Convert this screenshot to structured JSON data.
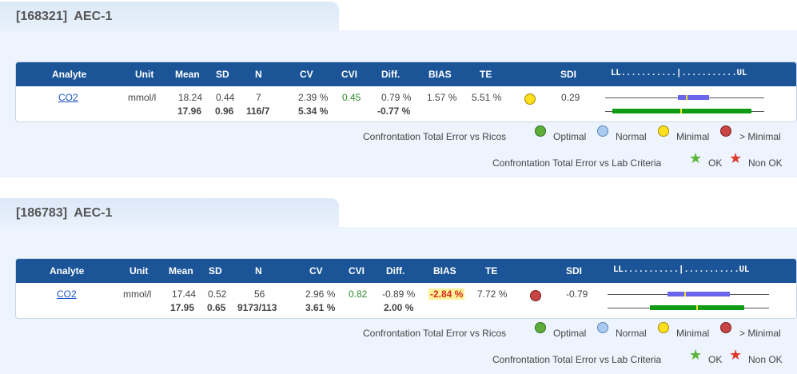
{
  "colors": {
    "header_bg": "#1b5597",
    "panel_bg": "#eef4fd",
    "link": "#1a52c9",
    "cvi_green": "#2a8a2a",
    "bias_alert": "#d92b1d",
    "bias_alert_bg": "#fdf19a"
  },
  "headers": {
    "analyte": "Analyte",
    "unit": "Unit",
    "mean": "Mean",
    "sd": "SD",
    "n": "N",
    "cv": "CV",
    "cvi": "CVI",
    "diff": "Diff.",
    "bias": "BIAS",
    "te": "TE",
    "sdi": "SDI",
    "scale": "LL...........|...........UL"
  },
  "legend": {
    "ricos_label": "Confrontation Total Error vs Ricos",
    "optimal": "Optimal",
    "normal": "Normal",
    "minimal": "Minimal",
    "gt_minimal": "> Minimal",
    "lab_label": "Confrontation Total Error vs Lab Criteria",
    "ok": "OK",
    "non_ok": "Non OK"
  },
  "sections": [
    {
      "title": "[168321]  AEC-1",
      "row": {
        "analyte": "CO2",
        "unit": "mmol/l",
        "mean": "18.24",
        "mean2": "17.96",
        "sd": "0.44",
        "sd2": "0.96",
        "n": "7",
        "n2": "116/7",
        "cv": "2.39 %",
        "cv2": "5.34 %",
        "cvi": "0.45",
        "diff": "0.79 %",
        "diff2": "-0.77 %",
        "bias": "1.57 %",
        "te": "5.51 %",
        "status_icon": "yellow-circle-icon",
        "sdi": "0.29"
      }
    },
    {
      "title": "[186783]  AEC-1",
      "row": {
        "analyte": "CO2",
        "unit": "mmol/l",
        "mean": "17.44",
        "mean2": "17.95",
        "sd": "0.52",
        "sd2": "0.65",
        "n": "56",
        "n2": "9173/113",
        "cv": "2.96 %",
        "cv2": "3.61 %",
        "cvi": "0.82",
        "diff": "-0.89 %",
        "diff2": "2.00 %",
        "bias": "-2.84 %",
        "te": "7.72 %",
        "status_icon": "red-circle-icon",
        "sdi": "-0.79"
      }
    }
  ]
}
